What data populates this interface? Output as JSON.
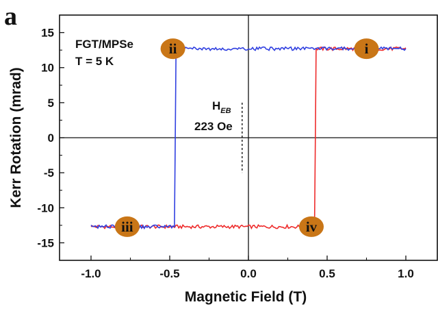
{
  "panel_label": "a",
  "chart_data": {
    "type": "line",
    "xlabel": "Magnetic Field (T)",
    "ylabel": "Kerr Rotation (mrad)",
    "xlim": [
      -1.2,
      1.2
    ],
    "ylim": [
      -17.5,
      17.5
    ],
    "x_ticks": [
      -1.0,
      -0.5,
      0.0,
      0.5,
      1.0
    ],
    "x_tick_labels": [
      "-1.0",
      "-0.5",
      "0.0",
      "0.5",
      "1.0"
    ],
    "y_ticks": [
      -15,
      -10,
      -5,
      0,
      5,
      10,
      15
    ],
    "y_tick_labels": [
      "-15",
      "-10",
      "-5",
      "0",
      "5",
      "10",
      "15"
    ],
    "grid": false,
    "zero_lines": true,
    "annotations": {
      "sample": "FGT/MPSe",
      "temperature": "T = 5 K",
      "exchange_bias_symbol": "H",
      "exchange_bias_subscript": "EB",
      "exchange_bias_value": "223 Oe"
    },
    "series": [
      {
        "color": "#ee2b2b",
        "x": [
          -1.0,
          0.42,
          0.43,
          1.0
        ],
        "y": [
          -12.7,
          -12.7,
          12.7,
          12.7
        ]
      },
      {
        "color": "#2f3fe0",
        "x": [
          1.0,
          -0.46,
          -0.47,
          -1.0
        ],
        "y": [
          12.7,
          12.7,
          -12.7,
          -12.7
        ]
      }
    ],
    "markers": [
      {
        "label": "i",
        "x": 0.75,
        "y": 12.7
      },
      {
        "label": "ii",
        "x": -0.48,
        "y": 12.7
      },
      {
        "label": "iii",
        "x": -0.77,
        "y": -12.7
      },
      {
        "label": "iv",
        "x": 0.4,
        "y": -12.7
      }
    ],
    "marker_color": "#c97617",
    "dashed_marker_x": -0.04,
    "dashed_marker_y": [
      -5,
      5
    ]
  }
}
